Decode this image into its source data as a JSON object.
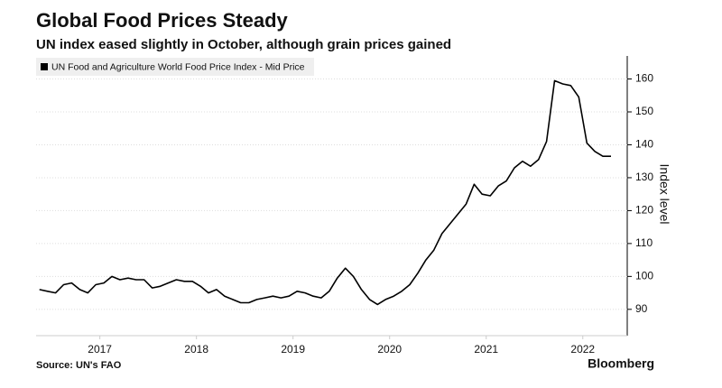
{
  "chart_data": {
    "type": "line",
    "title": "Global Food Prices Steady",
    "subtitle": "UN index eased slightly in October, although grain prices gained",
    "y_label": "Index level",
    "source": "Source: UN's FAO",
    "brand": "Bloomberg",
    "x": [
      2016.875,
      2016.958,
      2017.042,
      2017.125,
      2017.208,
      2017.292,
      2017.375,
      2017.458,
      2017.542,
      2017.625,
      2017.708,
      2017.792,
      2017.875,
      2017.958,
      2018.042,
      2018.125,
      2018.208,
      2018.292,
      2018.375,
      2018.458,
      2018.542,
      2018.625,
      2018.708,
      2018.792,
      2018.875,
      2018.958,
      2019.042,
      2019.125,
      2019.208,
      2019.292,
      2019.375,
      2019.458,
      2019.542,
      2019.625,
      2019.708,
      2019.792,
      2019.875,
      2019.958,
      2020.042,
      2020.125,
      2020.208,
      2020.292,
      2020.375,
      2020.458,
      2020.542,
      2020.625,
      2020.708,
      2020.792,
      2020.875,
      2020.958,
      2021.042,
      2021.125,
      2021.208,
      2021.292,
      2021.375,
      2021.458,
      2021.542,
      2021.625,
      2021.708,
      2021.792,
      2021.875,
      2021.958,
      2022.042,
      2022.125,
      2022.208,
      2022.292,
      2022.375,
      2022.458,
      2022.542,
      2022.625,
      2022.708,
      2022.792
    ],
    "series": [
      {
        "name": "UN Food and Agriculture World Food Price Index - Mid Price",
        "color": "#000000",
        "values": [
          96,
          95.5,
          95,
          97.5,
          98,
          96,
          95,
          97.5,
          98,
          100,
          99,
          99.5,
          99,
          99,
          96.5,
          97,
          98,
          99,
          98.5,
          98.5,
          97,
          95,
          96,
          94,
          93,
          92,
          92,
          93,
          93.5,
          94,
          93.5,
          94,
          95.5,
          95,
          94,
          93.5,
          95.5,
          99.5,
          102.5,
          100,
          96,
          93,
          91.5,
          93,
          94,
          95.5,
          97.5,
          101,
          105,
          108,
          113,
          116,
          119,
          122,
          128,
          125,
          124.5,
          127.5,
          129,
          133,
          135,
          133.5,
          135.5,
          141,
          159.5,
          158.5,
          158,
          154.5,
          140.5,
          138,
          136.5,
          136.5
        ]
      }
    ],
    "xlim": [
      2016.84,
      2022.96
    ],
    "xticks": [
      {
        "value": 2017.5,
        "label": "2017"
      },
      {
        "value": 2018.5,
        "label": "2018"
      },
      {
        "value": 2019.5,
        "label": "2019"
      },
      {
        "value": 2020.5,
        "label": "2020"
      },
      {
        "value": 2021.5,
        "label": "2021"
      },
      {
        "value": 2022.5,
        "label": "2022"
      }
    ],
    "ylim": [
      82,
      167
    ],
    "yticks": [
      90,
      100,
      110,
      120,
      130,
      140,
      150,
      160
    ],
    "grid": true
  }
}
